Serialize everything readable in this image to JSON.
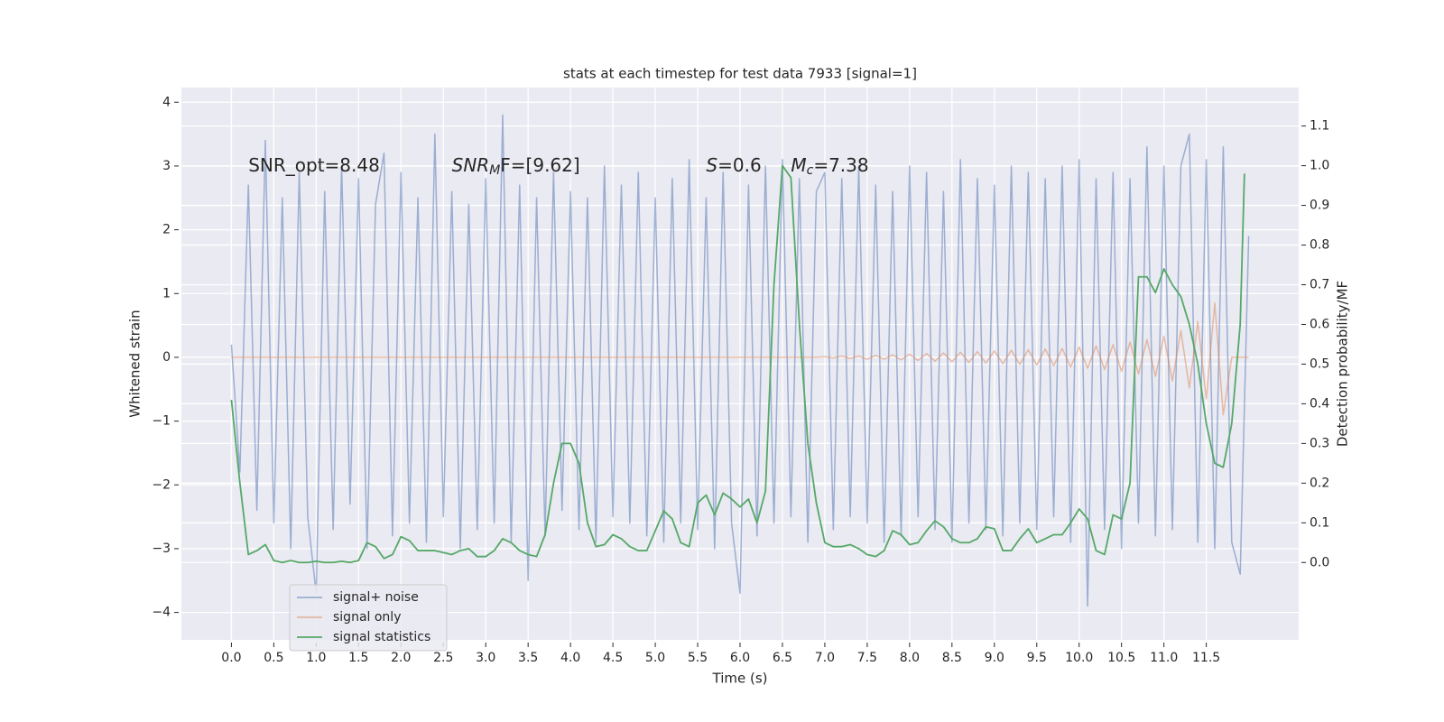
{
  "chart_data": {
    "type": "line",
    "title": "stats at each timestep for test data 7933 [signal=1]",
    "xlabel": "Time (s)",
    "ylabel": "Whitened strain",
    "y2label": "Detection probability/MF",
    "annotations": [
      {
        "text": "SNR_opt=8.48"
      },
      {
        "italic": "SNR",
        "sub": "M",
        "text": "F=[9.62]"
      },
      {
        "italic": "S",
        "text": "=0.6"
      },
      {
        "italic": "M",
        "sub": "c",
        "text": "=7.38"
      }
    ],
    "xlim": [
      -0.59,
      12.59
    ],
    "ylim": [
      -4.43,
      4.23
    ],
    "y2lim": [
      -0.195,
      1.197
    ],
    "xticks": [
      {
        "value": 0,
        "label": "0.0"
      },
      0.5,
      {
        "value": 1,
        "label": "1.0"
      },
      1.5,
      {
        "value": 2,
        "label": "2.0"
      },
      2.5,
      {
        "value": 3,
        "label": "3.0"
      },
      3.5,
      {
        "value": 4,
        "label": "4.0"
      },
      4.5,
      {
        "value": 5,
        "label": "5.0"
      },
      5.5,
      {
        "value": 6,
        "label": "6.0"
      },
      6.5,
      {
        "value": 7,
        "label": "7.0"
      },
      7.5,
      {
        "value": 8,
        "label": "8.0"
      },
      8.5,
      {
        "value": 9,
        "label": "9.0"
      },
      9.5,
      {
        "value": 10,
        "label": "10.0"
      },
      10.5,
      {
        "value": 11,
        "label": "11.0"
      },
      11.5
    ],
    "yticks": [
      {
        "value": -4,
        "label": "−4"
      },
      {
        "value": -3,
        "label": "−3"
      },
      {
        "value": -2,
        "label": "−2"
      },
      {
        "value": -1,
        "label": "−1"
      },
      0,
      1,
      2,
      3,
      4
    ],
    "y2ticks": [
      {
        "value": 0,
        "label": "0.0"
      },
      0.1,
      0.2,
      0.3,
      0.4,
      0.5,
      0.6,
      0.7,
      0.8,
      0.9,
      {
        "value": 1,
        "label": "1.0"
      },
      1.1
    ],
    "grid": true,
    "legend": "lower left",
    "series": [
      {
        "name": "signal+ noise",
        "color": "#4c72b0",
        "x": [
          0,
          0.1,
          0.2,
          0.3,
          0.4,
          0.5,
          0.6,
          0.7,
          0.8,
          0.9,
          1,
          1.1,
          1.2,
          1.3,
          1.4,
          1.5,
          1.6,
          1.7,
          1.8,
          1.9,
          2,
          2.1,
          2.2,
          2.3,
          2.4,
          2.5,
          2.6,
          2.7,
          2.8,
          2.9,
          3,
          3.1,
          3.2,
          3.3,
          3.4,
          3.5,
          3.6,
          3.7,
          3.8,
          3.9,
          4,
          4.1,
          4.2,
          4.3,
          4.4,
          4.5,
          4.6,
          4.7,
          4.8,
          4.9,
          5,
          5.1,
          5.2,
          5.3,
          5.4,
          5.5,
          5.6,
          5.7,
          5.8,
          5.9,
          6,
          6.1,
          6.2,
          6.3,
          6.4,
          6.5,
          6.6,
          6.7,
          6.8,
          6.9,
          7,
          7.1,
          7.2,
          7.3,
          7.4,
          7.5,
          7.6,
          7.7,
          7.8,
          7.9,
          8,
          8.1,
          8.2,
          8.3,
          8.4,
          8.5,
          8.6,
          8.7,
          8.8,
          8.9,
          9,
          9.1,
          9.2,
          9.3,
          9.4,
          9.5,
          9.6,
          9.7,
          9.8,
          9.9,
          10,
          10.1,
          10.2,
          10.3,
          10.4,
          10.5,
          10.6,
          10.7,
          10.8,
          10.9,
          11,
          11.1,
          11.2,
          11.3,
          11.4,
          11.5,
          11.6,
          11.7,
          11.8,
          11.9,
          12
        ],
        "values": [
          0.2,
          -1.8,
          2.7,
          -2.4,
          3.4,
          -2.6,
          2.5,
          -3.0,
          2.9,
          -2.5,
          -3.7,
          2.6,
          -2.7,
          3.0,
          -2.3,
          2.8,
          -3.0,
          2.4,
          3.2,
          -2.8,
          2.9,
          -2.6,
          2.5,
          -2.9,
          3.5,
          -2.5,
          2.6,
          -3.0,
          2.4,
          -2.7,
          2.8,
          -2.6,
          3.8,
          -2.9,
          2.7,
          -3.5,
          2.5,
          -2.8,
          2.9,
          -2.4,
          2.6,
          -2.7,
          2.5,
          -2.9,
          3.0,
          -2.5,
          2.7,
          -2.6,
          2.9,
          -2.8,
          2.5,
          -2.9,
          2.8,
          -2.6,
          3.1,
          -2.7,
          2.5,
          -3.0,
          2.9,
          -2.6,
          -3.7,
          2.7,
          -2.8,
          3.0,
          -2.6,
          3.1,
          -2.5,
          2.8,
          -2.9,
          2.6,
          2.9,
          -2.7,
          2.8,
          -2.5,
          3.0,
          -2.6,
          2.7,
          -2.9,
          2.6,
          -2.8,
          3.0,
          -2.5,
          2.9,
          -2.7,
          2.6,
          -2.9,
          3.1,
          -2.6,
          2.8,
          -2.7,
          2.7,
          -2.8,
          3.0,
          -2.6,
          2.9,
          -2.7,
          2.8,
          -2.5,
          3.0,
          -2.9,
          3.1,
          -3.9,
          2.8,
          -2.7,
          2.9,
          -3.0,
          2.8,
          -2.6,
          3.3,
          -2.8,
          3.0,
          -2.7,
          3.0,
          3.5,
          -2.9,
          3.1,
          -3.0,
          3.3,
          -2.9,
          -3.4,
          1.9
        ]
      },
      {
        "name": "signal only",
        "color": "#dd8452",
        "x": [
          0,
          0.1,
          0.2,
          0.3,
          0.4,
          0.5,
          0.6,
          0.7,
          0.8,
          0.9,
          1,
          1.1,
          1.2,
          1.3,
          1.4,
          1.5,
          1.6,
          1.7,
          1.8,
          1.9,
          2,
          2.1,
          2.2,
          2.3,
          2.4,
          2.5,
          2.6,
          2.7,
          2.8,
          2.9,
          3,
          3.1,
          3.2,
          3.3,
          3.4,
          3.5,
          3.6,
          3.7,
          3.8,
          3.9,
          4,
          4.1,
          4.2,
          4.3,
          4.4,
          4.5,
          4.6,
          4.7,
          4.8,
          4.9,
          5,
          5.1,
          5.2,
          5.3,
          5.4,
          5.5,
          5.6,
          5.7,
          5.8,
          5.9,
          6,
          6.1,
          6.2,
          6.3,
          6.4,
          6.5,
          6.6,
          6.7,
          6.8,
          6.9,
          7,
          7.1,
          7.2,
          7.3,
          7.4,
          7.5,
          7.6,
          7.7,
          7.8,
          7.9,
          8,
          8.1,
          8.2,
          8.3,
          8.4,
          8.5,
          8.6,
          8.7,
          8.8,
          8.9,
          9,
          9.1,
          9.2,
          9.3,
          9.4,
          9.5,
          9.6,
          9.7,
          9.8,
          9.9,
          10,
          10.1,
          10.2,
          10.3,
          10.4,
          10.5,
          10.6,
          10.7,
          10.8,
          10.9,
          11,
          11.1,
          11.2,
          11.3,
          11.4,
          11.5,
          11.6,
          11.7,
          11.8,
          11.9,
          12
        ],
        "values": [
          0,
          0,
          0,
          0,
          0,
          0,
          0,
          0,
          0,
          0,
          0,
          0,
          0,
          0,
          0,
          0,
          0,
          0,
          0,
          0,
          0,
          0,
          0,
          0,
          0,
          0,
          0,
          0,
          0,
          0,
          0,
          0,
          0,
          0,
          0,
          0,
          0,
          0,
          0,
          0,
          0,
          0,
          0,
          0,
          0,
          0,
          0,
          0,
          0,
          0,
          0,
          0,
          0,
          0,
          0,
          0,
          0,
          0,
          0,
          0,
          0,
          0,
          0,
          0,
          0,
          0,
          0,
          0,
          0,
          0,
          0.01,
          -0.01,
          0.02,
          -0.02,
          0.02,
          -0.03,
          0.03,
          -0.03,
          0.04,
          -0.04,
          0.05,
          -0.05,
          0.06,
          -0.06,
          0.07,
          -0.07,
          0.08,
          -0.08,
          0.09,
          -0.09,
          0.1,
          -0.1,
          0.11,
          -0.11,
          0.12,
          -0.12,
          0.13,
          -0.13,
          0.14,
          -0.15,
          0.16,
          -0.17,
          0.18,
          -0.19,
          0.2,
          -0.22,
          0.24,
          -0.26,
          0.28,
          -0.3,
          0.33,
          -0.37,
          0.42,
          -0.48,
          0.56,
          -0.65,
          0.85,
          -0.9,
          0,
          0,
          0
        ]
      },
      {
        "name": "signal statistics",
        "color": "#55a868",
        "axis": "y2",
        "x": [
          0,
          0.1,
          0.2,
          0.3,
          0.4,
          0.5,
          0.6,
          0.7,
          0.8,
          0.9,
          1,
          1.1,
          1.2,
          1.3,
          1.4,
          1.5,
          1.6,
          1.7,
          1.8,
          1.9,
          2,
          2.1,
          2.2,
          2.3,
          2.4,
          2.5,
          2.6,
          2.7,
          2.8,
          2.9,
          3,
          3.1,
          3.2,
          3.3,
          3.4,
          3.5,
          3.6,
          3.7,
          3.8,
          3.9,
          4,
          4.1,
          4.2,
          4.3,
          4.4,
          4.5,
          4.6,
          4.7,
          4.8,
          4.9,
          5,
          5.1,
          5.2,
          5.3,
          5.4,
          5.5,
          5.6,
          5.7,
          5.8,
          5.9,
          6,
          6.1,
          6.2,
          6.3,
          6.4,
          6.5,
          6.6,
          6.7,
          6.8,
          6.9,
          7,
          7.1,
          7.2,
          7.3,
          7.4,
          7.5,
          7.6,
          7.7,
          7.8,
          7.9,
          8,
          8.1,
          8.2,
          8.3,
          8.4,
          8.5,
          8.6,
          8.7,
          8.8,
          8.9,
          9,
          9.1,
          9.2,
          9.3,
          9.4,
          9.5,
          9.6,
          9.7,
          9.8,
          9.9,
          10,
          10.1,
          10.2,
          10.3,
          10.4,
          10.5,
          10.6,
          10.7,
          10.8,
          10.9,
          11,
          11.1,
          11.2,
          11.3,
          11.4,
          11.5,
          11.6,
          11.7,
          11.8,
          11.9,
          11.95
        ],
        "values": [
          0.41,
          0.2,
          0.02,
          0.03,
          0.045,
          0.005,
          0,
          0.005,
          0,
          0,
          0.003,
          0,
          0,
          0.003,
          0,
          0.005,
          0.05,
          0.04,
          0.01,
          0.02,
          0.065,
          0.055,
          0.03,
          0.03,
          0.03,
          0.025,
          0.02,
          0.03,
          0.035,
          0.015,
          0.015,
          0.03,
          0.06,
          0.05,
          0.03,
          0.02,
          0.015,
          0.07,
          0.2,
          0.3,
          0.3,
          0.25,
          0.1,
          0.04,
          0.045,
          0.07,
          0.06,
          0.04,
          0.03,
          0.03,
          0.08,
          0.13,
          0.11,
          0.05,
          0.04,
          0.15,
          0.17,
          0.12,
          0.175,
          0.16,
          0.14,
          0.16,
          0.1,
          0.18,
          0.7,
          1.0,
          0.97,
          0.6,
          0.3,
          0.15,
          0.05,
          0.04,
          0.04,
          0.045,
          0.035,
          0.02,
          0.015,
          0.03,
          0.08,
          0.07,
          0.045,
          0.05,
          0.08,
          0.105,
          0.09,
          0.06,
          0.05,
          0.05,
          0.06,
          0.09,
          0.085,
          0.03,
          0.03,
          0.06,
          0.085,
          0.05,
          0.06,
          0.07,
          0.07,
          0.1,
          0.135,
          0.11,
          0.03,
          0.02,
          0.12,
          0.11,
          0.2,
          0.72,
          0.72,
          0.68,
          0.74,
          0.7,
          0.67,
          0.6,
          0.5,
          0.35,
          0.25,
          0.24,
          0.35,
          0.6,
          0.98
        ]
      }
    ]
  }
}
